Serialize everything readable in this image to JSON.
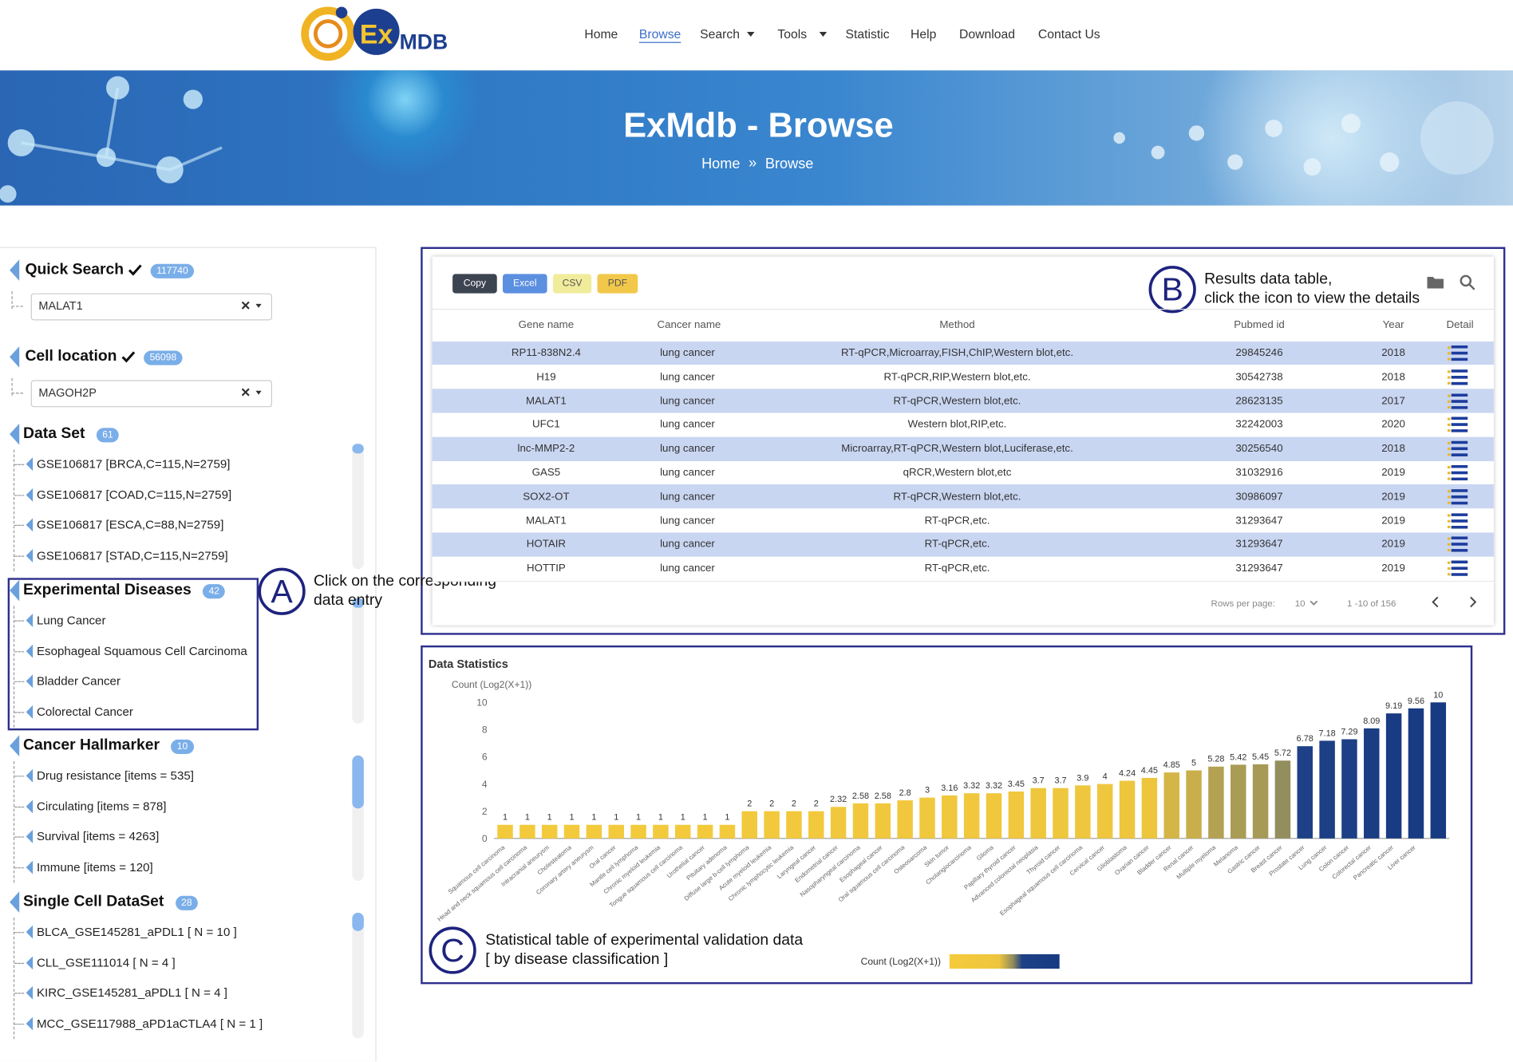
{
  "nav": {
    "logo": {
      "mark": "Ex",
      "text": "MDB"
    },
    "links": [
      "Home",
      "Browse",
      "Search",
      "Tools",
      "Statistic",
      "Help",
      "Download",
      "Contact Us"
    ],
    "active": 1
  },
  "hero": {
    "title": "ExMdb - Browse",
    "breadcrumb": [
      "Home",
      "Browse"
    ],
    "separator": "»"
  },
  "sidebar": {
    "sections": [
      {
        "title": "Quick Search",
        "badge": "117740",
        "select": "MALAT1"
      },
      {
        "title": "Cell location",
        "badge": "56098",
        "select": "MAGOH2P"
      },
      {
        "title": "Data Set",
        "badge": "61",
        "items": [
          "GSE106817 [BRCA,C=115,N=2759]",
          "GSE106817 [COAD,C=115,N=2759]",
          "GSE106817 [ESCA,C=88,N=2759]",
          "GSE106817 [STAD,C=115,N=2759]"
        ]
      },
      {
        "title": "Experimental Diseases",
        "badge": "42",
        "items": [
          "Lung Cancer",
          "Esophageal Squamous Cell Carcinoma",
          "Bladder Cancer",
          "Colorectal Cancer"
        ]
      },
      {
        "title": "Cancer Hallmarker",
        "badge": "10",
        "items": [
          "Drug resistance [items = 535]",
          "Circulating [items = 878]",
          "Survival [items = 4263]",
          "Immune [items = 120]"
        ]
      },
      {
        "title": "Single Cell DataSet",
        "badge": "28",
        "items": [
          "BLCA_GSE145281_aPDL1 [ N = 10 ]",
          "CLL_GSE111014 [ N = 4 ]",
          "KIRC_GSE145281_aPDL1 [ N = 4 ]",
          "MCC_GSE117988_aPD1aCTLA4 [ N = 1 ]"
        ]
      }
    ]
  },
  "annotations": [
    {
      "letter": "A",
      "lines": [
        "Click on the corresponding",
        "data entry"
      ]
    },
    {
      "letter": "B",
      "lines": [
        "Results data table,",
        "click the icon to view the details"
      ]
    },
    {
      "letter": "C",
      "lines": [
        "Statistical table of experimental validation data",
        "[ by disease classification ]"
      ]
    }
  ],
  "table": {
    "buttons": [
      "Copy",
      "Excel",
      "CSV",
      "PDF"
    ],
    "columns": [
      "Gene name",
      "Cancer name",
      "Method",
      "Pubmed id",
      "Year",
      "Detail"
    ],
    "rows": [
      [
        "RP11-838N2.4",
        "lung cancer",
        "RT-qPCR,Microarray,FISH,ChIP,Western blot,etc.",
        "29845246",
        "2018"
      ],
      [
        "H19",
        "lung cancer",
        "RT-qPCR,RIP,Western blot,etc.",
        "30542738",
        "2018"
      ],
      [
        "MALAT1",
        "lung cancer",
        "RT-qPCR,Western blot,etc.",
        "28623135",
        "2017"
      ],
      [
        "UFC1",
        "lung cancer",
        "Western blot,RIP,etc.",
        "32242003",
        "2020"
      ],
      [
        "lnc-MMP2-2",
        "lung cancer",
        "Microarray,RT-qPCR,Western blot,Luciferase,etc.",
        "30256540",
        "2018"
      ],
      [
        "GAS5",
        "lung cancer",
        "qRCR,Western blot,etc",
        "31032916",
        "2019"
      ],
      [
        "SOX2-OT",
        "lung cancer",
        "RT-qPCR,Western blot,etc.",
        "30986097",
        "2019"
      ],
      [
        "MALAT1",
        "lung cancer",
        "RT-qPCR,etc.",
        "31293647",
        "2019"
      ],
      [
        "HOTAIR",
        "lung cancer",
        "RT-qPCR,etc.",
        "31293647",
        "2019"
      ],
      [
        "HOTTIP",
        "lung cancer",
        "RT-qPCR,etc.",
        "31293647",
        "2019"
      ]
    ],
    "footer": {
      "rows_label": "Rows per page:",
      "rows_value": "10",
      "range": "1 -10 of 156"
    }
  },
  "chart_data": {
    "type": "bar",
    "title": "Data Statistics",
    "ylabel": "Count (Log2(X+1))",
    "categories": [
      "Squamous cell carcinoma",
      "Head and neck squamous cell carcinoma",
      "Intracranial aneurysm",
      "Cholesteatoma",
      "Coronary artery aneurysm",
      "Oral cancer",
      "Mantle cell lymphoma",
      "Chronic myeloid leukemia",
      "Tongue squamous cell carcinoma",
      "Urothelial cancer",
      "Pituitary adenoma",
      "Diffuse large b-cell lymphoma",
      "Acute myeloid leukemia",
      "Chronic lymphocytic leukemia",
      "Laryngeal cancer",
      "Endometrial cancer",
      "Nasopharyngeal carcinoma",
      "Esophageal cancer",
      "Oral squamous cell carcinoma",
      "Osteosarcoma",
      "Skin tumor",
      "Cholangiocarcinoma",
      "Glioma",
      "Papillary thyroid cancer",
      "Advanced colorectal neoplasia",
      "Thyroid cancer",
      "Esophageal squamous cell carcinoma",
      "Cervical cancer",
      "Glioblastoma",
      "Ovarian cancer",
      "Bladder cancer",
      "Renal cancer",
      "Multiple myeloma",
      "Melanoma",
      "Gastric cancer",
      "Breast cancer",
      "Prostate cancer",
      "Lung cancer",
      "Colon cancer",
      "Colorectal cancer",
      "Pancreatic cancer",
      "Liver cancer",
      null
    ],
    "values": [
      1,
      1,
      1,
      1,
      1,
      1,
      1,
      1,
      1,
      1,
      1,
      2,
      2,
      2,
      2,
      2.32,
      2.58,
      2.58,
      2.8,
      3,
      3.16,
      3.32,
      3.32,
      3.45,
      3.7,
      3.7,
      3.9,
      4,
      4.24,
      4.45,
      4.85,
      5,
      5.28,
      5.42,
      5.45,
      5.72,
      6.78,
      7.18,
      7.29,
      8.09,
      9.19,
      9.56,
      10
    ],
    "ylim": [
      0,
      10
    ],
    "yticks": [
      0,
      2,
      4,
      6,
      8,
      10
    ],
    "grid": false,
    "colorscale": [
      [
        0,
        "#f5cb3b"
      ],
      [
        0.45,
        "#eec63e"
      ],
      [
        0.58,
        "#8d8a5f"
      ],
      [
        0.66,
        "#1d4086"
      ],
      [
        1,
        "#173a82"
      ]
    ],
    "colorbar": {
      "label": "Count (Log2(X+1))"
    }
  }
}
